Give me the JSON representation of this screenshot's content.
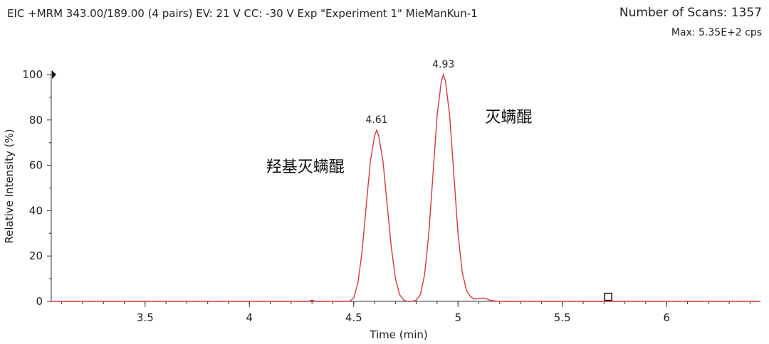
{
  "header": {
    "title": "EIC +MRM 343.00/189.00 (4 pairs) EV: 21 V CC: -30 V Exp \"Experiment 1\" MieManKun-1",
    "scans": "Number of Scans: 1357",
    "max": "Max: 5.35E+2 cps"
  },
  "chart_data": {
    "type": "line",
    "xlabel": "Time (min)",
    "ylabel": "Relative Intensity (%)",
    "xlim": [
      3.05,
      6.45
    ],
    "ylim": [
      0,
      100
    ],
    "x_ticks": [
      "3.5",
      "4",
      "4.5",
      "5",
      "5.5",
      "6"
    ],
    "y_ticks": [
      "0",
      "20",
      "40",
      "60",
      "80",
      "100"
    ],
    "line_color": "#d9363e",
    "series": [
      {
        "x": [
          3.05,
          4.28,
          4.3,
          4.32,
          4.48,
          4.5,
          4.52,
          4.54,
          4.56,
          4.58,
          4.6,
          4.61,
          4.62,
          4.64,
          4.66,
          4.68,
          4.7,
          4.72,
          4.74,
          4.76,
          4.78,
          4.8,
          4.82,
          4.84,
          4.86,
          4.88,
          4.9,
          4.92,
          4.93,
          4.94,
          4.96,
          4.98,
          5.0,
          5.02,
          5.04,
          5.06,
          5.08,
          5.1,
          5.12,
          5.14,
          5.16,
          5.2,
          6.45
        ],
        "y": [
          0,
          0,
          0.5,
          0,
          0,
          1.5,
          8,
          22,
          42,
          62,
          73,
          75.5,
          73,
          62,
          43,
          24,
          10,
          3,
          0.5,
          0,
          0,
          0.5,
          3,
          12,
          30,
          56,
          82,
          97,
          100,
          97,
          82,
          56,
          30,
          13,
          5,
          2,
          1,
          1.2,
          1.5,
          1,
          0.3,
          0,
          0
        ]
      }
    ],
    "peak_labels": [
      {
        "x": 4.61,
        "y": 75.5,
        "text": "4.61"
      },
      {
        "x": 4.93,
        "y": 100,
        "text": "4.93"
      }
    ],
    "annotations": [
      {
        "x": 4.08,
        "y": 57,
        "text": "羟基灭螨醌"
      },
      {
        "x": 5.13,
        "y": 79,
        "text": "灭螨醌"
      }
    ],
    "marker": {
      "x": 5.72,
      "y": 2
    },
    "grid": false
  }
}
